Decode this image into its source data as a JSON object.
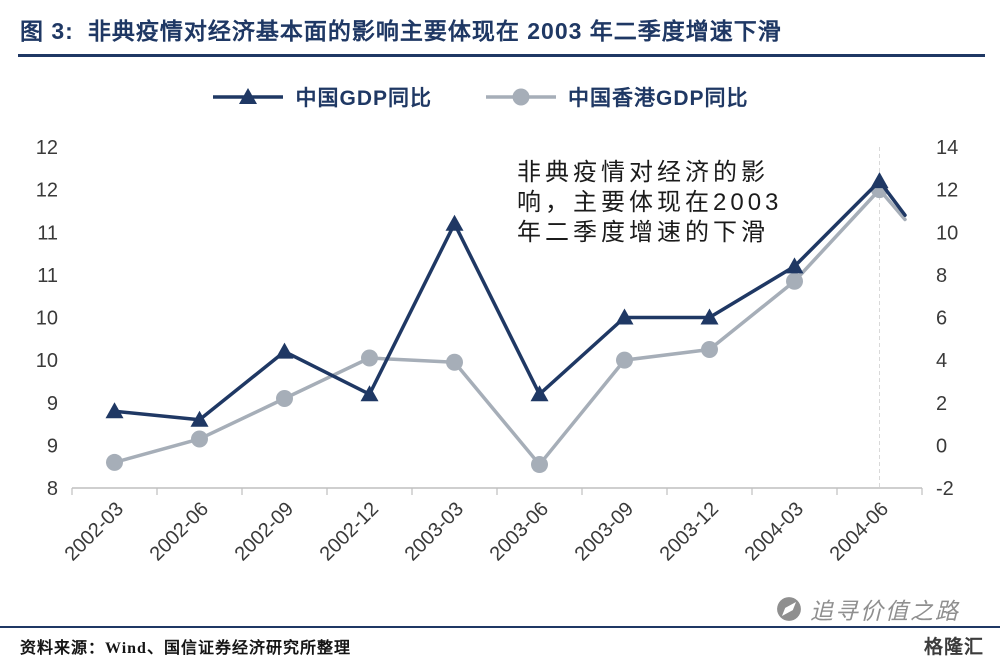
{
  "header": {
    "title_prefix": "图 3:",
    "title_text": "非典疫情对经济基本面的影响主要体现在 2003 年二季度增速下滑"
  },
  "annotation": {
    "lines": [
      "非典疫情对经济的影",
      "响，主要体现在2003",
      "年二季度增速的下滑"
    ]
  },
  "footer": {
    "source": "资料来源：Wind、国信证券经济研究所整理",
    "watermark": "追寻价值之路",
    "brand": "格隆汇"
  },
  "colors": {
    "china_series": "#1F3864",
    "hk_series": "#A6AEB8",
    "rule_navy": "#1F3864",
    "axis_gray": "#BFBFBF"
  },
  "chart_data": {
    "type": "line",
    "title": "非典疫情对经济基本面的影响主要体现在 2003 年二季度增速下滑",
    "annotation_text": "非典疫情对经济的影响，主要体现在2003年二季度增速的下滑",
    "legend_position": "top",
    "grid": false,
    "categories": [
      "2002-03",
      "2002-06",
      "2002-09",
      "2002-12",
      "2003-03",
      "2003-06",
      "2003-09",
      "2003-12",
      "2004-03",
      "2004-06"
    ],
    "series": [
      {
        "name": "中国GDP同比",
        "axis": "left",
        "marker": "triangle",
        "color": "#1F3864",
        "values": [
          8.9,
          8.8,
          9.6,
          9.1,
          11.1,
          9.1,
          10.0,
          10.0,
          10.6,
          11.6
        ],
        "tail_value": 11.2
      },
      {
        "name": "中国香港GDP同比",
        "axis": "right",
        "marker": "circle",
        "color": "#A6AEB8",
        "values": [
          -0.8,
          0.3,
          2.2,
          4.1,
          3.9,
          -0.9,
          4.0,
          4.5,
          7.7,
          12.0
        ],
        "tail_value": 10.6
      }
    ],
    "tail_frac": 0.3,
    "left_axis": {
      "min": 8,
      "max": 12,
      "tick_labels": [
        "12",
        "12",
        "11",
        "11",
        "10",
        "10",
        "9",
        "9",
        "8"
      ]
    },
    "right_axis": {
      "min": -2,
      "max": 14,
      "tick_labels": [
        "14",
        "12",
        "10",
        "8",
        "6",
        "4",
        "2",
        "0",
        "-2"
      ]
    }
  }
}
